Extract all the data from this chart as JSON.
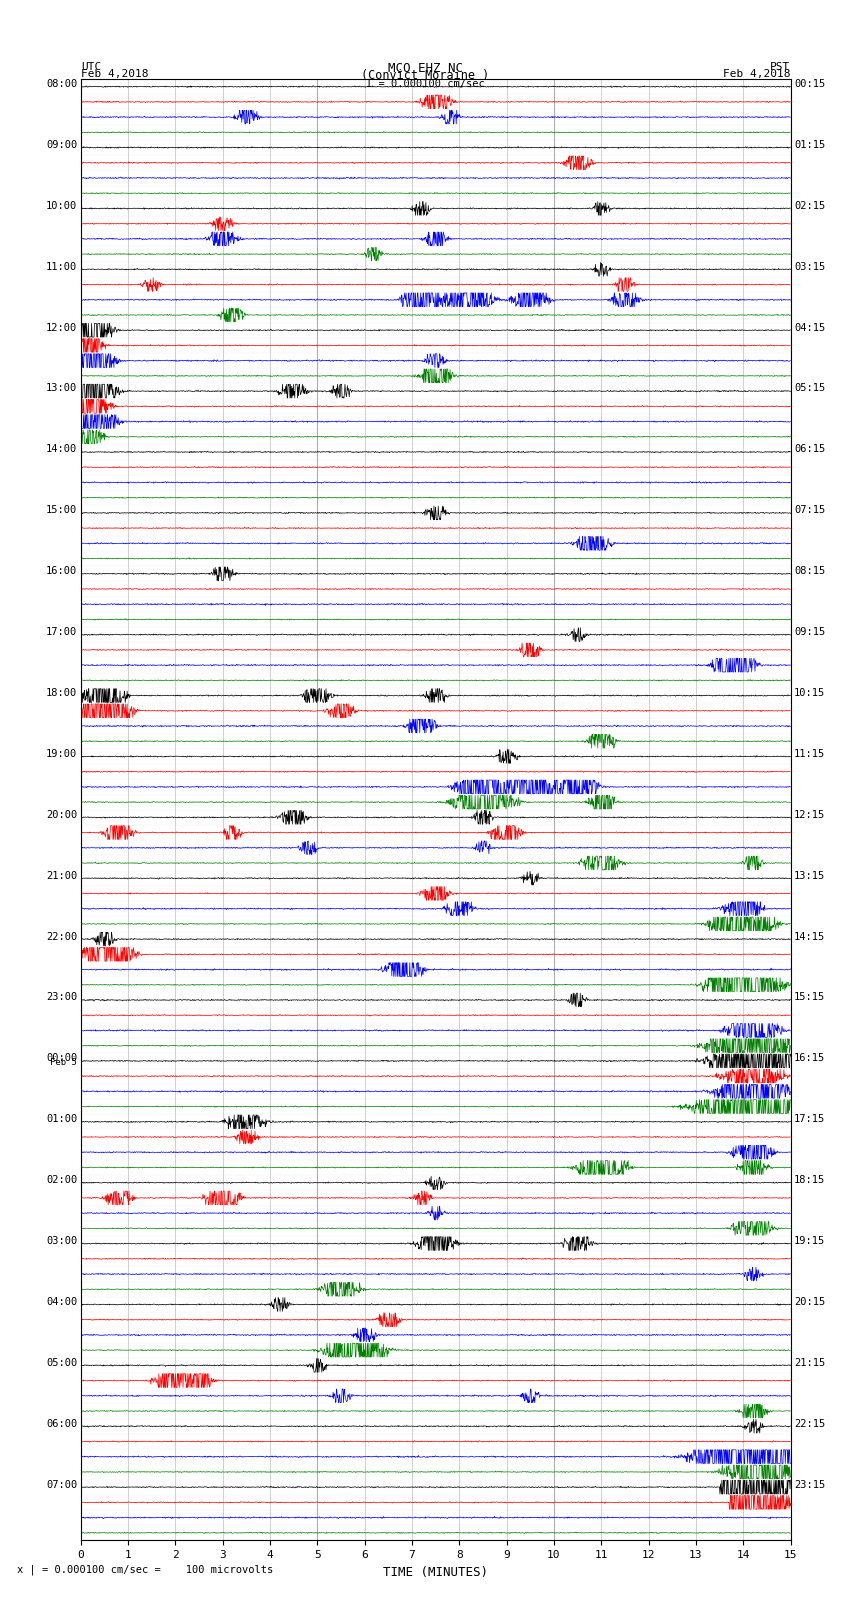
{
  "title_line1": "MCO EHZ NC",
  "title_line2": "(Convict Moraine )",
  "scale_bar_text": "I = 0.000100 cm/sec",
  "utc_label": "UTC",
  "utc_date": "Feb 4,2018",
  "pst_label": "PST",
  "pst_date": "Feb 4,2018",
  "feb5_label": "Feb 5",
  "xlabel": "TIME (MINUTES)",
  "footnote": "x | = 0.000100 cm/sec =    100 microvolts",
  "bg_color": "#ffffff",
  "trace_colors": [
    "black",
    "red",
    "blue",
    "green"
  ],
  "n_rows": 92,
  "x_min": 0,
  "x_max": 15,
  "x_ticks": [
    0,
    1,
    2,
    3,
    4,
    5,
    6,
    7,
    8,
    9,
    10,
    11,
    12,
    13,
    14,
    15
  ],
  "left_times_hourly": [
    "08:00",
    "09:00",
    "10:00",
    "11:00",
    "12:00",
    "13:00",
    "14:00",
    "15:00",
    "16:00",
    "17:00",
    "18:00",
    "19:00",
    "20:00",
    "21:00",
    "22:00",
    "23:00",
    "00:00",
    "01:00",
    "02:00",
    "03:00",
    "04:00",
    "05:00",
    "06:00",
    "07:00"
  ],
  "right_times_hourly": [
    "00:15",
    "01:15",
    "02:15",
    "03:15",
    "04:15",
    "05:15",
    "06:15",
    "07:15",
    "08:15",
    "09:15",
    "10:15",
    "11:15",
    "12:15",
    "13:15",
    "14:15",
    "15:15",
    "16:15",
    "17:15",
    "18:15",
    "19:15",
    "20:15",
    "21:15",
    "22:15",
    "23:15"
  ],
  "noise_base": 0.06,
  "seed": 12345,
  "fig_width": 8.5,
  "fig_height": 16.13
}
